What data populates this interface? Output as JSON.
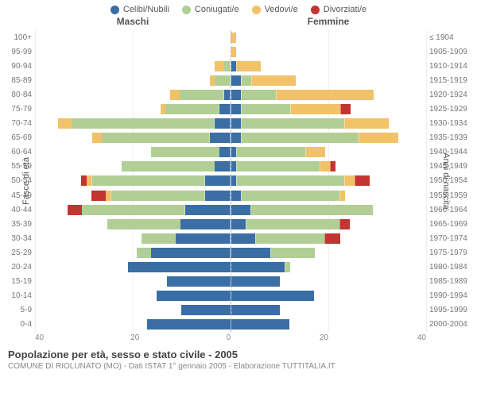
{
  "legend": [
    {
      "key": "single",
      "label": "Celibi/Nubili",
      "color": "#3a6ea5"
    },
    {
      "key": "married",
      "label": "Coniugati/e",
      "color": "#b1cf95"
    },
    {
      "key": "widowed",
      "label": "Vedovi/e",
      "color": "#f2c268"
    },
    {
      "key": "divorced",
      "label": "Divorziati/e",
      "color": "#c23531"
    }
  ],
  "headers": {
    "male": "Maschi",
    "female": "Femmine"
  },
  "axis_labels": {
    "left": "Fasce di età",
    "right": "Anni di nascita"
  },
  "xaxis": {
    "max": 40,
    "ticks": [
      40,
      20,
      0,
      20,
      40
    ]
  },
  "title": "Popolazione per età, sesso e stato civile - 2005",
  "subtitle": "COMUNE DI RIOLUNATO (MO) - Dati ISTAT 1° gennaio 2005 - Elaborazione TUTTITALIA.IT",
  "chart": {
    "type": "population-pyramid",
    "background": "#ffffff",
    "grid_color": "#eeeeee",
    "bar_gap_pct": 28,
    "center_line": "#bbbbbb",
    "label_color": "#777777",
    "label_fontsize": 10
  },
  "rows": [
    {
      "age": "100+",
      "birth": "≤ 1904",
      "male": {
        "single": 0,
        "married": 0,
        "widowed": 0,
        "divorced": 0
      },
      "female": {
        "single": 0,
        "married": 0,
        "widowed": 1,
        "divorced": 0
      }
    },
    {
      "age": "95-99",
      "birth": "1905-1909",
      "male": {
        "single": 0,
        "married": 0,
        "widowed": 0,
        "divorced": 0
      },
      "female": {
        "single": 0,
        "married": 0,
        "widowed": 1,
        "divorced": 0
      }
    },
    {
      "age": "90-94",
      "birth": "1910-1914",
      "male": {
        "single": 0,
        "married": 1,
        "widowed": 2,
        "divorced": 0
      },
      "female": {
        "single": 1,
        "married": 0,
        "widowed": 5,
        "divorced": 0
      }
    },
    {
      "age": "85-89",
      "birth": "1915-1919",
      "male": {
        "single": 0,
        "married": 3,
        "widowed": 1,
        "divorced": 0
      },
      "female": {
        "single": 2,
        "married": 2,
        "widowed": 9,
        "divorced": 0
      }
    },
    {
      "age": "80-84",
      "birth": "1920-1924",
      "male": {
        "single": 1,
        "married": 9,
        "widowed": 2,
        "divorced": 0
      },
      "female": {
        "single": 2,
        "married": 7,
        "widowed": 20,
        "divorced": 0
      }
    },
    {
      "age": "75-79",
      "birth": "1925-1929",
      "male": {
        "single": 2,
        "married": 11,
        "widowed": 1,
        "divorced": 0
      },
      "female": {
        "single": 2,
        "married": 10,
        "widowed": 10,
        "divorced": 2
      }
    },
    {
      "age": "70-74",
      "birth": "1930-1934",
      "male": {
        "single": 3,
        "married": 29,
        "widowed": 3,
        "divorced": 0
      },
      "female": {
        "single": 2,
        "married": 21,
        "widowed": 9,
        "divorced": 0
      }
    },
    {
      "age": "65-69",
      "birth": "1935-1939",
      "male": {
        "single": 4,
        "married": 22,
        "widowed": 2,
        "divorced": 0
      },
      "female": {
        "single": 2,
        "married": 24,
        "widowed": 8,
        "divorced": 0
      }
    },
    {
      "age": "60-64",
      "birth": "1940-1944",
      "male": {
        "single": 2,
        "married": 14,
        "widowed": 0,
        "divorced": 0
      },
      "female": {
        "single": 1,
        "married": 14,
        "widowed": 4,
        "divorced": 0
      }
    },
    {
      "age": "55-59",
      "birth": "1945-1949",
      "male": {
        "single": 3,
        "married": 19,
        "widowed": 0,
        "divorced": 0
      },
      "female": {
        "single": 1,
        "married": 17,
        "widowed": 2,
        "divorced": 1
      }
    },
    {
      "age": "50-54",
      "birth": "1950-1954",
      "male": {
        "single": 5,
        "married": 23,
        "widowed": 1,
        "divorced": 1
      },
      "female": {
        "single": 1,
        "married": 22,
        "widowed": 2,
        "divorced": 3
      }
    },
    {
      "age": "45-49",
      "birth": "1955-1959",
      "male": {
        "single": 5,
        "married": 19,
        "widowed": 1,
        "divorced": 3
      },
      "female": {
        "single": 2,
        "married": 20,
        "widowed": 1,
        "divorced": 0
      }
    },
    {
      "age": "40-44",
      "birth": "1960-1964",
      "male": {
        "single": 9,
        "married": 21,
        "widowed": 0,
        "divorced": 3
      },
      "female": {
        "single": 4,
        "married": 25,
        "widowed": 0,
        "divorced": 0
      }
    },
    {
      "age": "35-39",
      "birth": "1965-1969",
      "male": {
        "single": 10,
        "married": 15,
        "widowed": 0,
        "divorced": 0
      },
      "female": {
        "single": 3,
        "married": 19,
        "widowed": 0,
        "divorced": 2
      }
    },
    {
      "age": "30-34",
      "birth": "1970-1974",
      "male": {
        "single": 11,
        "married": 7,
        "widowed": 0,
        "divorced": 0
      },
      "female": {
        "single": 5,
        "married": 14,
        "widowed": 0,
        "divorced": 3
      }
    },
    {
      "age": "25-29",
      "birth": "1975-1979",
      "male": {
        "single": 16,
        "married": 3,
        "widowed": 0,
        "divorced": 0
      },
      "female": {
        "single": 8,
        "married": 9,
        "widowed": 0,
        "divorced": 0
      }
    },
    {
      "age": "20-24",
      "birth": "1980-1984",
      "male": {
        "single": 21,
        "married": 0,
        "widowed": 0,
        "divorced": 0
      },
      "female": {
        "single": 11,
        "married": 1,
        "widowed": 0,
        "divorced": 0
      }
    },
    {
      "age": "15-19",
      "birth": "1985-1989",
      "male": {
        "single": 13,
        "married": 0,
        "widowed": 0,
        "divorced": 0
      },
      "female": {
        "single": 10,
        "married": 0,
        "widowed": 0,
        "divorced": 0
      }
    },
    {
      "age": "10-14",
      "birth": "1990-1994",
      "male": {
        "single": 15,
        "married": 0,
        "widowed": 0,
        "divorced": 0
      },
      "female": {
        "single": 17,
        "married": 0,
        "widowed": 0,
        "divorced": 0
      }
    },
    {
      "age": "5-9",
      "birth": "1995-1999",
      "male": {
        "single": 10,
        "married": 0,
        "widowed": 0,
        "divorced": 0
      },
      "female": {
        "single": 10,
        "married": 0,
        "widowed": 0,
        "divorced": 0
      }
    },
    {
      "age": "0-4",
      "birth": "2000-2004",
      "male": {
        "single": 17,
        "married": 0,
        "widowed": 0,
        "divorced": 0
      },
      "female": {
        "single": 12,
        "married": 0,
        "widowed": 0,
        "divorced": 0
      }
    }
  ]
}
